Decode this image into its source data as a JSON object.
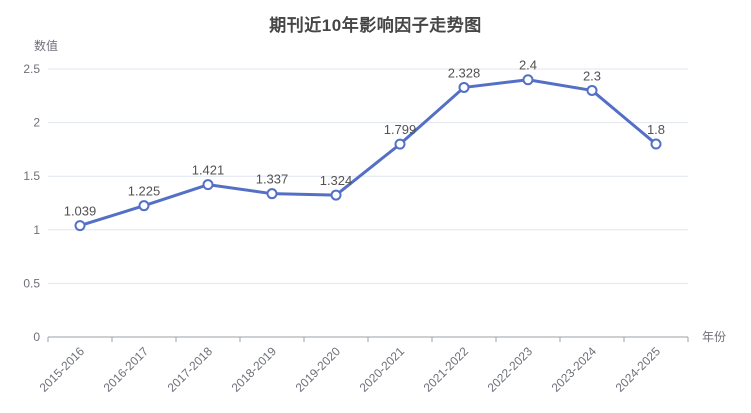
{
  "chart_data": {
    "type": "line",
    "title": "期刊近10年影响因子走势图",
    "xlabel": "年份",
    "ylabel": "数值",
    "categories": [
      "2015-2016",
      "2016-2017",
      "2017-2018",
      "2018-2019",
      "2019-2020",
      "2020-2021",
      "2021-2022",
      "2022-2023",
      "2023-2024",
      "2024-2025"
    ],
    "values": [
      1.039,
      1.225,
      1.421,
      1.337,
      1.324,
      1.799,
      2.328,
      2.4,
      2.3,
      1.8
    ],
    "value_labels": [
      "1.039",
      "1.225",
      "1.421",
      "1.337",
      "1.324",
      "1.799",
      "2.328",
      "2.4",
      "2.3",
      "1.8"
    ],
    "ylim": [
      0,
      2.5
    ],
    "yticks": [
      0,
      0.5,
      1,
      1.5,
      2,
      2.5
    ],
    "ytick_labels": [
      "0",
      "0.5",
      "1",
      "1.5",
      "2",
      "2.5"
    ],
    "grid": true,
    "legend_position": "none",
    "x_label_rotation_deg": 45,
    "colors": {
      "line": "#5470c6",
      "marker_fill": "#ffffff",
      "marker_stroke": "#5470c6",
      "grid_line": "#e0e6f1",
      "axis_line": "#9aa0a6",
      "tick_label": "#6e7079",
      "axis_title": "#6e7079",
      "value_label": "#525252",
      "title": "#464646",
      "background": "#ffffff"
    }
  }
}
